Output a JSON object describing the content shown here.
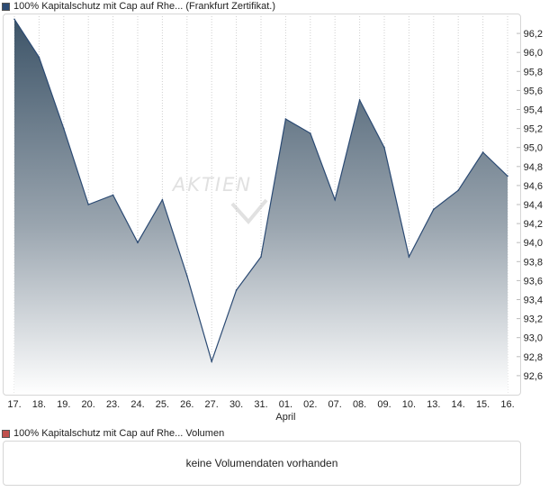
{
  "price_legend": {
    "text": "100% Kapitalschutz mit Cap  auf Rhe... (Frankfurt Zertifikat.)",
    "color": "#2b4a73"
  },
  "volume_legend": {
    "text": "100% Kapitalschutz mit Cap  auf Rhe... Volumen",
    "color": "#c0504d"
  },
  "watermark": "AKTIEN",
  "volume_empty_text": "keine Volumendaten vorhanden",
  "chart_data": {
    "type": "area",
    "title": "",
    "x": [
      "17.",
      "18.",
      "19.",
      "20.",
      "23.",
      "24.",
      "25.",
      "26.",
      "27.",
      "30.",
      "31.",
      "01.",
      "02.",
      "07.",
      "08.",
      "09.",
      "10.",
      "13.",
      "14.",
      "15.",
      "16."
    ],
    "x_month_labels": [
      {
        "at": "01.",
        "label": "April"
      }
    ],
    "series": [
      {
        "values": [
          96.35,
          95.95,
          95.2,
          94.4,
          94.5,
          94.0,
          94.45,
          93.65,
          92.75,
          93.5,
          93.85,
          95.3,
          95.15,
          94.45,
          95.5,
          95.0,
          93.85,
          94.35,
          94.55,
          94.95,
          94.7
        ],
        "color": "#2b4a73"
      }
    ],
    "yticks": [
      "92,6",
      "92,8",
      "93,0",
      "93,2",
      "93,4",
      "93,6",
      "93,8",
      "94,0",
      "94,2",
      "94,4",
      "94,6",
      "94,8",
      "95,0",
      "95,2",
      "95,4",
      "95,6",
      "95,8",
      "96,0",
      "96,2"
    ],
    "ylim": [
      92.4,
      96.4
    ],
    "xlabel": "",
    "ylabel": "",
    "grid": "vertical dotted",
    "fill": "gradient dark slate to white"
  }
}
